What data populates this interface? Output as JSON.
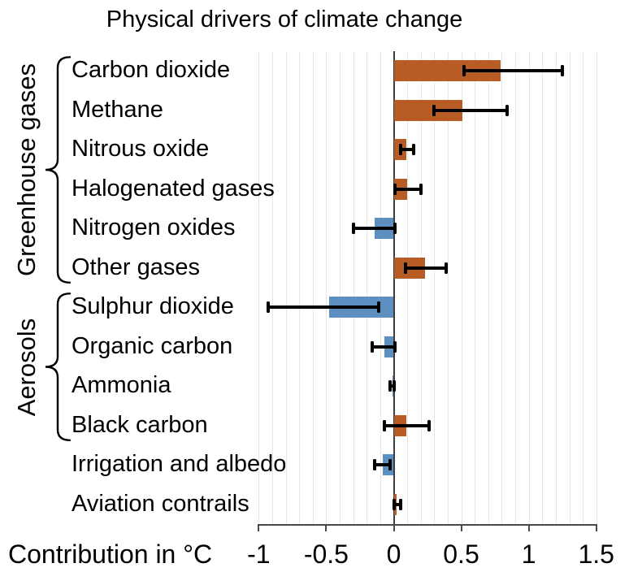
{
  "chart_data": {
    "type": "bar",
    "orientation": "horizontal",
    "title": "Physical drivers of climate change",
    "xlabel": "Contribution in °C",
    "unit": "°C",
    "xlim": [
      -1.05,
      1.55
    ],
    "xticks": [
      -1,
      -0.5,
      0,
      0.5,
      1,
      1.5
    ],
    "xtick_labels": [
      "-1",
      "-0.5",
      "0",
      "0.5",
      "1",
      "1.5"
    ],
    "grid_step": 0.1,
    "grid_range": [
      -1.0,
      1.5
    ],
    "grid_on": true,
    "legend": "none",
    "colors": {
      "positive": "#b85c25",
      "negative": "#5d90c0",
      "error": "#000000",
      "grid": "#e7e7e7",
      "zero_line": "#3f3f3f",
      "axis": "#4a4a4a",
      "text": "#000000"
    },
    "groups": [
      {
        "label": "Greenhouse gases",
        "rows": [
          0,
          5
        ]
      },
      {
        "label": "Aerosols",
        "rows": [
          6,
          9
        ]
      }
    ],
    "rows": [
      {
        "label": "Carbon dioxide",
        "value": 0.79,
        "ci": [
          0.52,
          1.25
        ]
      },
      {
        "label": "Methane",
        "value": 0.51,
        "ci": [
          0.3,
          0.84
        ]
      },
      {
        "label": "Nitrous oxide",
        "value": 0.09,
        "ci": [
          0.05,
          0.15
        ]
      },
      {
        "label": "Halogenated gases",
        "value": 0.1,
        "ci": [
          0.01,
          0.2
        ]
      },
      {
        "label": "Nitrogen oxides",
        "value": -0.14,
        "ci": [
          -0.3,
          0.01
        ]
      },
      {
        "label": "Other gases",
        "value": 0.23,
        "ci": [
          0.09,
          0.39
        ]
      },
      {
        "label": "Sulphur dioxide",
        "value": -0.48,
        "ci": [
          -0.93,
          -0.11
        ]
      },
      {
        "label": "Organic carbon",
        "value": -0.07,
        "ci": [
          -0.16,
          0.01
        ]
      },
      {
        "label": "Ammonia",
        "value": -0.01,
        "ci": [
          -0.03,
          0.0
        ]
      },
      {
        "label": "Black carbon",
        "value": 0.09,
        "ci": [
          -0.07,
          0.26
        ]
      },
      {
        "label": "Irrigation and albedo",
        "value": -0.08,
        "ci": [
          -0.14,
          -0.03
        ]
      },
      {
        "label": "Aviation contrails",
        "value": 0.02,
        "ci": [
          0.0,
          0.05
        ]
      }
    ]
  }
}
